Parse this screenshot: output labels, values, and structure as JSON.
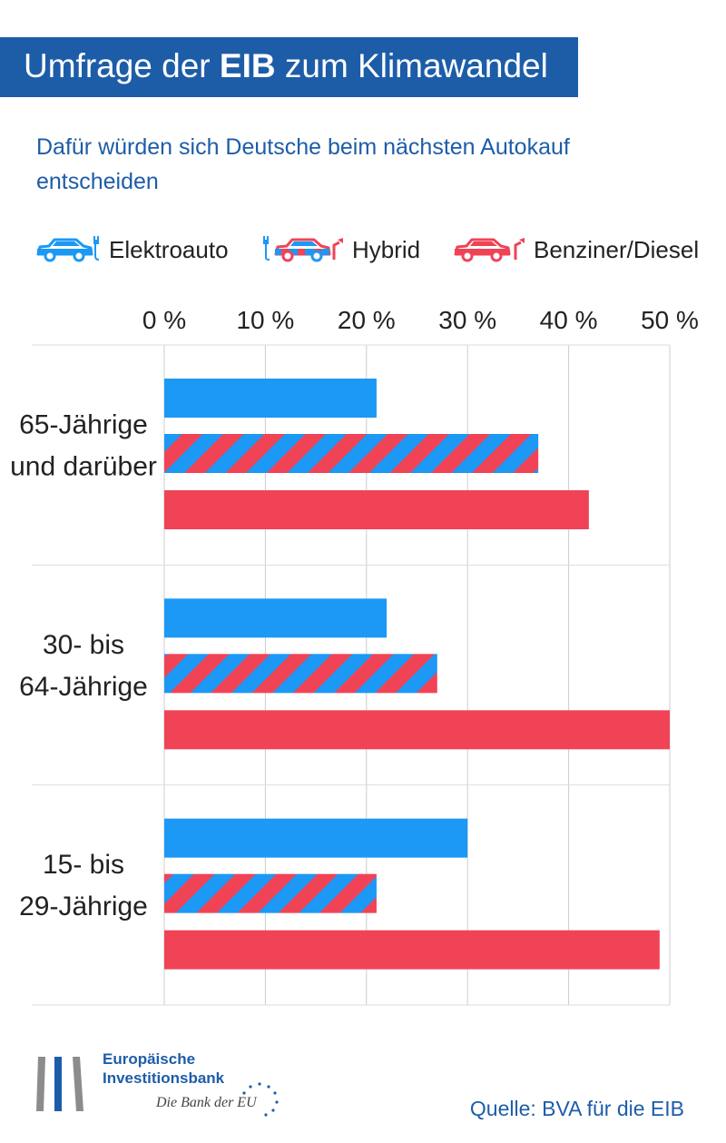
{
  "header": {
    "title_pre": "Umfrage der ",
    "title_bold": "EIB",
    "title_post": " zum Klimawandel"
  },
  "subtitle": "Dafür würden sich Deutsche beim nächsten Autokauf entscheiden",
  "legend": [
    {
      "label": "Elektroauto",
      "icon": "electric-car-icon"
    },
    {
      "label": "Hybrid",
      "icon": "hybrid-car-icon"
    },
    {
      "label": "Benziner/Diesel",
      "icon": "fuel-car-icon"
    }
  ],
  "colors": {
    "blue": "#1c98f5",
    "red": "#f04356",
    "brand": "#1d5da8",
    "grid": "#cccccc"
  },
  "chart_data": {
    "type": "bar",
    "orientation": "horizontal",
    "title": "Dafür würden sich Deutsche beim nächsten Autokauf entscheiden",
    "categories": [
      "65-Jährige\nund darüber",
      "30- bis\n64-Jährige",
      "15- bis\n29-Jährige"
    ],
    "series": [
      {
        "name": "Elektroauto",
        "values": [
          21,
          22,
          30
        ]
      },
      {
        "name": "Hybrid",
        "values": [
          37,
          27,
          21
        ]
      },
      {
        "name": "Benziner/Diesel",
        "values": [
          42,
          50,
          49
        ]
      }
    ],
    "ticks": [
      "0 %",
      "10 %",
      "20 %",
      "30 %",
      "40 %",
      "50 %"
    ],
    "tick_values": [
      0,
      10,
      20,
      30,
      40,
      50
    ],
    "xlim": [
      0,
      50
    ],
    "legend_position": "top"
  },
  "footer": {
    "bank_line1": "Europäische",
    "bank_line2": "Investitionsbank",
    "tagline": "Die Bank der EU",
    "source": "Quelle: BVA für die EIB"
  }
}
